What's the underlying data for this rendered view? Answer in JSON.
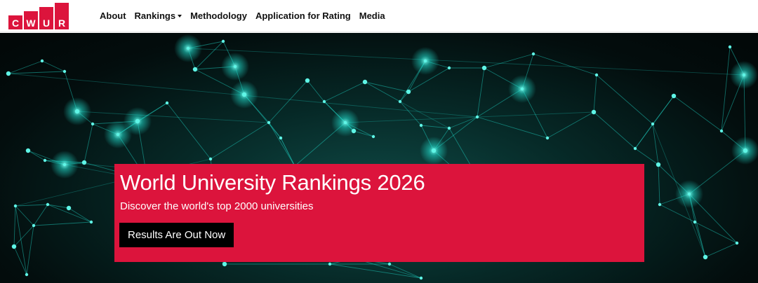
{
  "brand": {
    "letters": [
      "C",
      "W",
      "U",
      "R"
    ],
    "color": "#dc143c"
  },
  "nav": {
    "items": [
      {
        "label": "About",
        "dropdown": false
      },
      {
        "label": "Rankings",
        "dropdown": true
      },
      {
        "label": "Methodology",
        "dropdown": false
      },
      {
        "label": "Application for Rating",
        "dropdown": false
      },
      {
        "label": "Media",
        "dropdown": false
      }
    ]
  },
  "hero": {
    "title": "World University Rankings 2026",
    "subtitle": "Discover the world's top 2000 universities",
    "cta_label": "Results Are Out Now",
    "panel_color": "#dc143c",
    "network_color": "#22e0d0"
  }
}
